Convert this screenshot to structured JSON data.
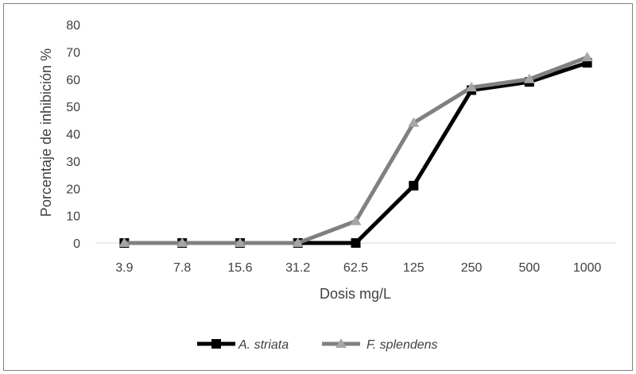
{
  "chart_data": {
    "type": "line",
    "title": "",
    "xlabel": "Dosis mg/L",
    "ylabel": "Porcentaje de inhibición %",
    "categories": [
      "3.9",
      "7.8",
      "15.6",
      "31.2",
      "62.5",
      "125",
      "250",
      "500",
      "1000"
    ],
    "ylim": [
      0,
      80
    ],
    "yticks": [
      0,
      10,
      20,
      30,
      40,
      50,
      60,
      70,
      80
    ],
    "grid": false,
    "legend_position": "bottom",
    "series": [
      {
        "name": "A. striata",
        "color": "#000000",
        "marker": "square",
        "values": [
          0,
          0,
          0,
          0,
          0,
          21,
          56,
          59,
          66
        ]
      },
      {
        "name": "F. splendens",
        "color": "#808080",
        "marker_color": "#a6a6a6",
        "marker": "triangle",
        "values": [
          0,
          0,
          0,
          0,
          8,
          44,
          57,
          60,
          68
        ]
      }
    ]
  }
}
